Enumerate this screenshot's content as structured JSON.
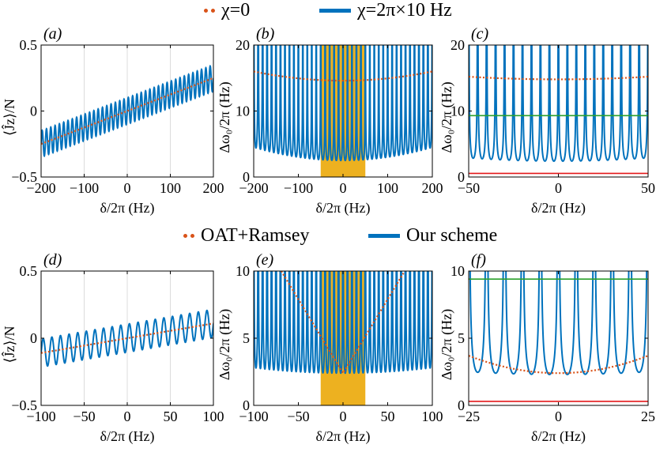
{
  "legends": [
    {
      "items": [
        {
          "label": "χ=0",
          "style": "dotted",
          "color": "#d95319"
        },
        {
          "label": "χ=2π×10 Hz",
          "style": "solid",
          "color": "#0072bd"
        }
      ]
    },
    {
      "items": [
        {
          "label": "OAT+Ramsey",
          "style": "dotted",
          "color": "#d95319"
        },
        {
          "label": "Our scheme",
          "style": "solid",
          "color": "#0072bd"
        }
      ]
    }
  ],
  "colors": {
    "blue": "#0072bd",
    "orange": "#d95319",
    "yellow": "#edb120",
    "green": "#2ca02c",
    "red": "#e41a1c",
    "grid": "#dcdcdc"
  },
  "chart_data": [
    {
      "panel": "(a)",
      "type": "line",
      "xlabel": "δ/2π (Hz)",
      "ylabel": "⟨Ĵz⟩/N",
      "xlim": [
        -200,
        200
      ],
      "ylim": [
        -0.5,
        0.5
      ],
      "xticks": [
        -200,
        -100,
        0,
        100,
        200
      ],
      "xtick_labels": [
        "−200",
        "−100",
        "0",
        "100",
        "200"
      ],
      "yticks": [
        -0.5,
        0,
        0.5
      ],
      "ytick_labels": [
        "−0.5",
        "0",
        "0.5"
      ],
      "grid": "x",
      "series": [
        {
          "name": "χ=2π×10 Hz",
          "kind": "oscillation",
          "center_slope": 0.00125,
          "center_offset": 0,
          "amplitude": 0.1,
          "period": 10
        },
        {
          "name": "χ=0",
          "kind": "linear",
          "x": [
            -200,
            200
          ],
          "y": [
            -0.25,
            0.25
          ]
        }
      ]
    },
    {
      "panel": "(b)",
      "type": "line",
      "xlabel": "δ/2π (Hz)",
      "ylabel": "Δω₀/2π (Hz)",
      "xlim": [
        -200,
        200
      ],
      "ylim": [
        0,
        20
      ],
      "xticks": [
        -200,
        -100,
        0,
        100,
        200
      ],
      "xtick_labels": [
        "−200",
        "−100",
        "0",
        "100",
        "200"
      ],
      "yticks": [
        0,
        10,
        20
      ],
      "ytick_labels": [
        "0",
        "10",
        "20"
      ],
      "grid": "none",
      "shaded_region": [
        -50,
        50
      ],
      "series": [
        {
          "name": "χ=2π×10 Hz",
          "kind": "peaks",
          "period": 10,
          "floor_min": 2.5,
          "floor_max": 4.5,
          "top": 20
        },
        {
          "name": "χ=0",
          "kind": "parabola",
          "vertex": [
            0,
            14.6
          ],
          "edge": 16.0
        }
      ]
    },
    {
      "panel": "(c)",
      "type": "line",
      "xlabel": "δ/2π (Hz)",
      "ylabel": "Δω₀/2π (Hz)",
      "xlim": [
        -50,
        50
      ],
      "ylim": [
        0,
        20
      ],
      "xticks": [
        -50,
        0,
        50
      ],
      "xtick_labels": [
        "−50",
        "0",
        "50"
      ],
      "yticks": [
        0,
        10,
        20
      ],
      "ytick_labels": [
        "0",
        "10",
        "20"
      ],
      "grid": "none",
      "series": [
        {
          "name": "χ=2π×10 Hz",
          "kind": "peaks",
          "period": 5,
          "floor_min": 2.4,
          "floor_max": 2.9,
          "top": 20
        },
        {
          "name": "χ=0",
          "kind": "parabola",
          "vertex": [
            0,
            14.8
          ],
          "edge": 15.2
        },
        {
          "name": "green reference",
          "kind": "hline",
          "y": 9.3
        },
        {
          "name": "red reference",
          "kind": "hline",
          "y": 0.55
        }
      ]
    },
    {
      "panel": "(d)",
      "type": "line",
      "xlabel": "δ/2π (Hz)",
      "ylabel": "⟨Ĵz⟩/N",
      "xlim": [
        -100,
        100
      ],
      "ylim": [
        -0.5,
        0.5
      ],
      "xticks": [
        -100,
        -50,
        0,
        50,
        100
      ],
      "xtick_labels": [
        "−100",
        "−50",
        "0",
        "50",
        "100"
      ],
      "yticks": [
        -0.5,
        0,
        0.5
      ],
      "ytick_labels": [
        "−0.5",
        "0",
        "0.5"
      ],
      "grid": "x",
      "series": [
        {
          "name": "Our scheme",
          "kind": "oscillation",
          "center_slope": 0.0011,
          "center_offset": 0,
          "amplitude": 0.105,
          "period": 10
        },
        {
          "name": "OAT+Ramsey",
          "kind": "linear",
          "x": [
            -100,
            100
          ],
          "y": [
            -0.11,
            0.11
          ]
        }
      ]
    },
    {
      "panel": "(e)",
      "type": "line",
      "xlabel": "δ/2π (Hz)",
      "ylabel": "Δω₀/2π (Hz)",
      "xlim": [
        -100,
        100
      ],
      "ylim": [
        0,
        10
      ],
      "xticks": [
        -100,
        -50,
        0,
        50,
        100
      ],
      "xtick_labels": [
        "−100",
        "−50",
        "0",
        "50",
        "100"
      ],
      "yticks": [
        0,
        5,
        10
      ],
      "ytick_labels": [
        "0",
        "5",
        "10"
      ],
      "grid": "none",
      "shaded_region": [
        -25,
        25
      ],
      "series": [
        {
          "name": "Our scheme",
          "kind": "peaks",
          "period": 5,
          "floor_min": 2.4,
          "floor_max": 2.8,
          "top": 10
        },
        {
          "name": "OAT+Ramsey",
          "kind": "vshape",
          "vertex": [
            0,
            2.4
          ],
          "slope": 0.11
        }
      ]
    },
    {
      "panel": "(f)",
      "type": "line",
      "xlabel": "δ/2π (Hz)",
      "ylabel": "Δω₀/2π (Hz)",
      "xlim": [
        -25,
        25
      ],
      "ylim": [
        0,
        10
      ],
      "xticks": [
        -25,
        0,
        25
      ],
      "xtick_labels": [
        "−25",
        "0",
        "25"
      ],
      "yticks": [
        0,
        5,
        10
      ],
      "ytick_labels": [
        "0",
        "5",
        "10"
      ],
      "grid": "none",
      "series": [
        {
          "name": "Our scheme",
          "kind": "peaks",
          "period": 5,
          "floor_min": 2.3,
          "floor_max": 2.5,
          "top": 10
        },
        {
          "name": "OAT+Ramsey",
          "kind": "parabola",
          "vertex": [
            0,
            2.4
          ],
          "edge": 3.7
        },
        {
          "name": "green reference",
          "kind": "hline",
          "y": 9.4
        },
        {
          "name": "red reference",
          "kind": "hline",
          "y": 0.3
        }
      ]
    }
  ]
}
